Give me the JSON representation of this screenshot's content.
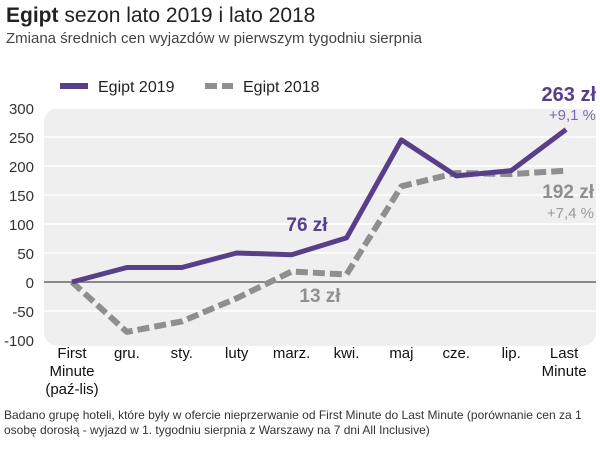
{
  "title": {
    "bold": "Egipt",
    "rest": " sezon lato 2019 i lato 2018"
  },
  "subtitle": "Zmiana średnich cen wyjazdów w pierwszym tygodniu sierpnia",
  "note": "Badano grupę hoteli, które były w ofercie  nieprzerwanie od First Minute do Last Minute (porównanie cen za 1 osobę dorosłą - wyjazd w 1. tygodniu sierpnia z Warszawy na 7 dni All Inclusive)",
  "chart_data": {
    "type": "line",
    "categories": [
      [
        "First",
        "Minute",
        "(paź-lis)"
      ],
      [
        "gru."
      ],
      [
        "sty."
      ],
      [
        "luty"
      ],
      [
        "marz."
      ],
      [
        "kwi."
      ],
      [
        "maj"
      ],
      [
        "cze."
      ],
      [
        "lip."
      ],
      [
        "Last",
        "Minute"
      ]
    ],
    "ylim": [
      -100,
      300
    ],
    "yticks": [
      -100,
      -50,
      0,
      50,
      100,
      150,
      200,
      250,
      300
    ],
    "series": [
      {
        "name": "Egipt 2019",
        "color": "#574089",
        "dashed": false,
        "values": [
          0,
          25,
          25,
          50,
          47,
          76,
          245,
          183,
          192,
          263
        ]
      },
      {
        "name": "Egipt 2018",
        "color": "#8f8f8f",
        "dashed": true,
        "values": [
          0,
          -86,
          -68,
          -28,
          18,
          13,
          165,
          188,
          186,
          192
        ]
      }
    ],
    "annotations": [
      {
        "text": "263 zł",
        "color": "#574089",
        "bold": true
      },
      {
        "text": "+9,1 %",
        "color": "#7d6aa8",
        "bold": false
      },
      {
        "text": "76 zł",
        "color": "#574089",
        "bold": true
      },
      {
        "text": "13 zł",
        "color": "#8f8f8f",
        "bold": true
      },
      {
        "text": "192 zł",
        "color": "#8f8f8f",
        "bold": true
      },
      {
        "text": "+7,4 %",
        "color": "#9a9a9a",
        "bold": false
      }
    ]
  }
}
